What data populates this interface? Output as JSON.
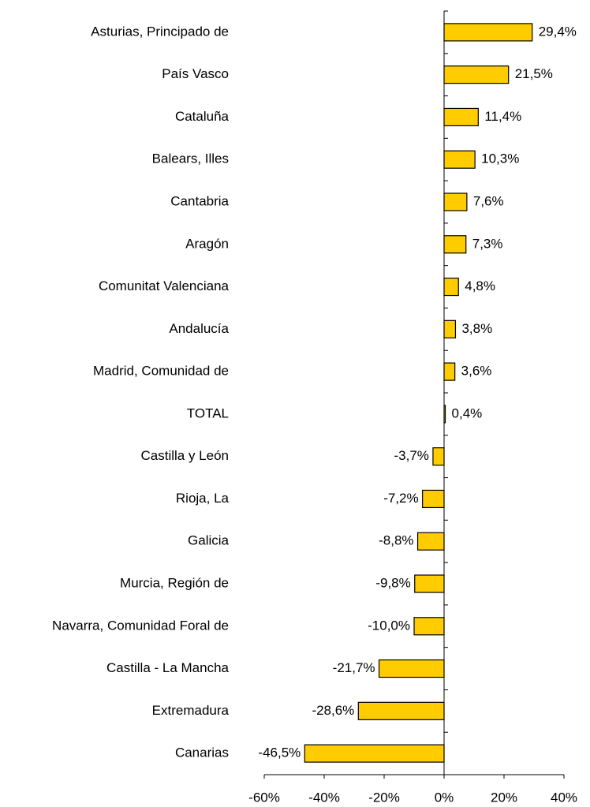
{
  "chart_data": {
    "type": "hbar",
    "categories": [
      "Asturias, Principado de",
      "País Vasco",
      "Cataluña",
      "Balears, Illes",
      "Cantabria",
      "Aragón",
      "Comunitat Valenciana",
      "Andalucía",
      "Madrid, Comunidad de",
      "TOTAL",
      "Castilla y León",
      "Rioja, La",
      "Galicia",
      "Murcia, Región de",
      "Navarra, Comunidad Foral de",
      "Castilla - La Mancha",
      "Extremadura",
      "Canarias"
    ],
    "values": [
      29.4,
      21.5,
      11.4,
      10.3,
      7.6,
      7.3,
      4.8,
      3.8,
      3.6,
      0.4,
      -3.7,
      -7.2,
      -8.8,
      -9.8,
      -10.0,
      -21.7,
      -28.6,
      -46.5
    ],
    "value_labels": [
      "29,4%",
      "21,5%",
      "11,4%",
      "10,3%",
      "7,6%",
      "7,3%",
      "4,8%",
      "3,8%",
      "3,6%",
      "0,4%",
      "-3,7%",
      "-7,2%",
      "-8,8%",
      "-9,8%",
      "-10,0%",
      "-21,7%",
      "-28,6%",
      "-46,5%"
    ],
    "color": "#ffcc00",
    "xlim": [
      -60,
      40
    ],
    "xticks": [
      {
        "value": -60,
        "label": "-60%"
      },
      {
        "value": -40,
        "label": "-40%"
      },
      {
        "value": -20,
        "label": "-20%"
      },
      {
        "value": 0,
        "label": "0%"
      },
      {
        "value": 20,
        "label": "20%"
      },
      {
        "value": 40,
        "label": "40%"
      }
    ]
  }
}
